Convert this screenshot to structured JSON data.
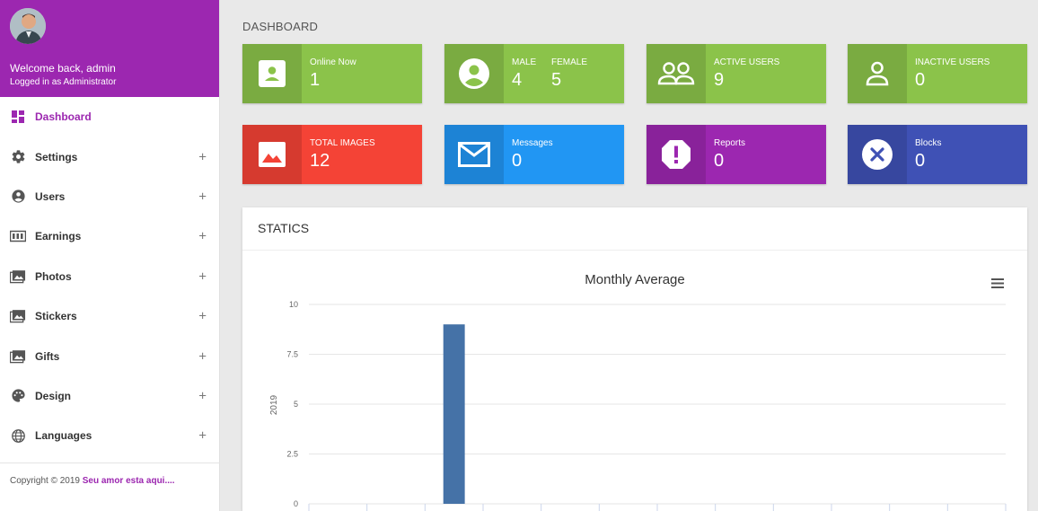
{
  "sidebar": {
    "welcome": "Welcome back, admin",
    "role": "Logged in as Administrator",
    "items": [
      {
        "label": "Dashboard",
        "icon": "dashboard-icon",
        "active": true
      },
      {
        "label": "Settings",
        "icon": "gear-icon"
      },
      {
        "label": "Users",
        "icon": "user-circle-icon"
      },
      {
        "label": "Earnings",
        "icon": "money-icon"
      },
      {
        "label": "Photos",
        "icon": "photos-icon"
      },
      {
        "label": "Stickers",
        "icon": "photos-icon"
      },
      {
        "label": "Gifts",
        "icon": "photos-icon"
      },
      {
        "label": "Design",
        "icon": "palette-icon"
      },
      {
        "label": "Languages",
        "icon": "globe-icon"
      }
    ],
    "expand_symbol": "+",
    "footer": {
      "copyright": "Copyright © 2019 ",
      "brand": "Seu amor esta aqui...."
    }
  },
  "page": {
    "title": "DASHBOARD"
  },
  "cards": [
    {
      "label": "Online Now",
      "value": "1",
      "color": "#8bc34a",
      "icon": "user-card-icon"
    },
    {
      "label": "MALE",
      "value": "4",
      "label2": "FEMALE",
      "value2": "5",
      "color": "#8bc34a",
      "icon": "account-circle-icon"
    },
    {
      "label": "ACTIVE USERS",
      "value": "9",
      "color": "#8bc34a",
      "icon": "users-group-icon"
    },
    {
      "label": "INACTIVE USERS",
      "value": "0",
      "color": "#8bc34a",
      "icon": "user-outline-icon"
    },
    {
      "label": "TOTAL IMAGES",
      "value": "12",
      "color": "#f44336",
      "icon": "image-icon"
    },
    {
      "label": "Messages",
      "value": "0",
      "color": "#2196f3",
      "icon": "mail-icon"
    },
    {
      "label": "Reports",
      "value": "0",
      "color": "#9c27b0",
      "icon": "alert-octagon-icon"
    },
    {
      "label": "Blocks",
      "value": "0",
      "color": "#3f51b5",
      "icon": "close-circle-icon"
    }
  ],
  "statics": {
    "title": "STATICS",
    "menu_icon": "hamburger-icon"
  },
  "chart_data": {
    "type": "bar",
    "title": "Monthly Average",
    "ylabel": "2019",
    "ylim": [
      0,
      10
    ],
    "yticks": [
      "0",
      "2.5",
      "5",
      "7.5",
      "10"
    ],
    "categories": [
      "",
      "",
      "",
      "",
      "",
      "",
      "",
      "",
      "",
      "",
      "",
      ""
    ],
    "values": [
      0,
      0,
      9,
      0,
      0,
      0,
      0,
      0,
      0,
      0,
      0,
      0
    ],
    "bar_color": "#4572a7",
    "grid": true
  }
}
